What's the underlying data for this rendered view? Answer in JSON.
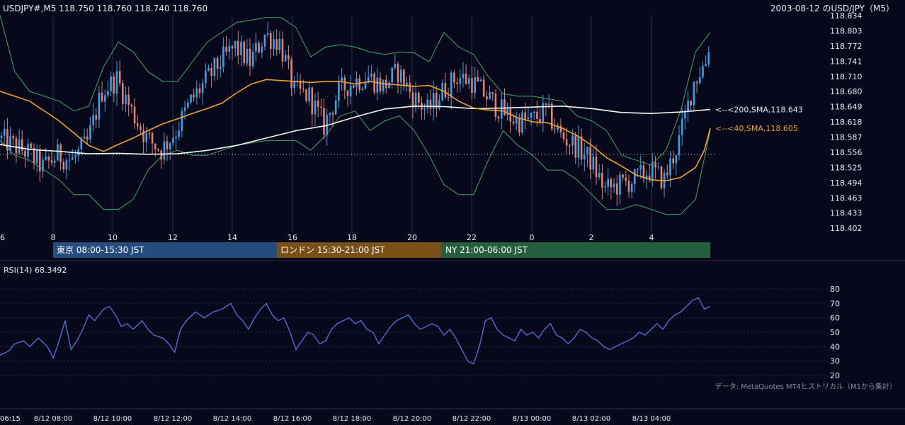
{
  "header": {
    "symbol_line": "USDJPY#,M5 118.750 118.760 118.740 118.760",
    "title": "2003-08-12 のUSD/JPY（M5）"
  },
  "colors": {
    "background": "#07091a",
    "grid": "#2a2d42",
    "bull": "#3aa0e8",
    "bear": "#e08070",
    "sma40": "#f0a030",
    "sma200": "#f4f4f4",
    "bollinger": "#3ea865",
    "rsi": "#5870e8",
    "tokyo": "#244c7c",
    "london": "#7a4f18",
    "ny": "#24603e"
  },
  "sessions": [
    {
      "label": "東京 08:00-15:30 JST"
    },
    {
      "label": "ロンドン 15:30-21:00 JST"
    },
    {
      "label": "NY 21:00-06:00 JST"
    }
  ],
  "footer_note": "データ: MetaQuotes MT4ヒストリカル（M1から集計）",
  "chart_data": [
    {
      "type": "candlestick",
      "title": "2003-08-12 のUSD/JPY（M5）",
      "symbol": "USDJPY#,M5",
      "last_ohlc": {
        "open": 118.75,
        "high": 118.76,
        "low": 118.74,
        "close": 118.76
      },
      "ylim": [
        118.402,
        118.834
      ],
      "y_ticks": [
        "118.834",
        "118.803",
        "118.772",
        "118.741",
        "118.710",
        "118.680",
        "118.649",
        "118.618",
        "118.587",
        "118.556",
        "118.525",
        "118.494",
        "118.463",
        "118.433",
        "118.402"
      ],
      "x_ticks": [
        "6",
        "8",
        "10",
        "12",
        "14",
        "16",
        "18",
        "20",
        "22",
        "0",
        "2",
        "4"
      ],
      "dotted_level": 118.552,
      "annotations": [
        {
          "label": "<--<200,SMA,118.643",
          "value": 118.643,
          "series": "sma200"
        },
        {
          "label": "<--<40,SMA,118.605",
          "value": 118.605,
          "series": "sma40"
        }
      ],
      "sma40_path": [
        [
          0,
          118.68
        ],
        [
          10,
          118.66
        ],
        [
          20,
          118.62
        ],
        [
          30,
          118.57
        ],
        [
          35,
          118.558
        ],
        [
          40,
          118.572
        ],
        [
          45,
          118.585
        ],
        [
          50,
          118.6
        ],
        [
          55,
          118.614
        ],
        [
          60,
          118.624
        ],
        [
          65,
          118.635
        ],
        [
          70,
          118.645
        ],
        [
          75,
          118.656
        ],
        [
          80,
          118.677
        ],
        [
          85,
          118.695
        ],
        [
          90,
          118.704
        ],
        [
          95,
          118.702
        ],
        [
          100,
          118.7
        ],
        [
          105,
          118.698
        ],
        [
          110,
          118.7
        ],
        [
          115,
          118.7
        ],
        [
          120,
          118.695
        ],
        [
          125,
          118.7
        ],
        [
          130,
          118.695
        ],
        [
          135,
          118.693
        ],
        [
          140,
          118.69
        ],
        [
          145,
          118.692
        ],
        [
          150,
          118.68
        ],
        [
          155,
          118.66
        ],
        [
          160,
          118.646
        ],
        [
          165,
          118.642
        ],
        [
          170,
          118.64
        ],
        [
          175,
          118.626
        ],
        [
          180,
          118.618
        ],
        [
          185,
          118.616
        ],
        [
          190,
          118.605
        ],
        [
          195,
          118.59
        ],
        [
          200,
          118.57
        ],
        [
          205,
          118.545
        ],
        [
          210,
          118.528
        ],
        [
          215,
          118.51
        ],
        [
          220,
          118.5
        ],
        [
          225,
          118.498
        ],
        [
          230,
          118.505
        ],
        [
          235,
          118.525
        ],
        [
          238,
          118.56
        ],
        [
          240,
          118.605
        ]
      ],
      "sma200_path": [
        [
          0,
          118.572
        ],
        [
          10,
          118.562
        ],
        [
          20,
          118.558
        ],
        [
          30,
          118.553
        ],
        [
          40,
          118.554
        ],
        [
          50,
          118.552
        ],
        [
          60,
          118.553
        ],
        [
          70,
          118.56
        ],
        [
          80,
          118.57
        ],
        [
          90,
          118.585
        ],
        [
          100,
          118.6
        ],
        [
          110,
          118.61
        ],
        [
          120,
          118.628
        ],
        [
          130,
          118.644
        ],
        [
          140,
          118.65
        ],
        [
          150,
          118.649
        ],
        [
          160,
          118.645
        ],
        [
          170,
          118.646
        ],
        [
          180,
          118.648
        ],
        [
          190,
          118.65
        ],
        [
          200,
          118.645
        ],
        [
          210,
          118.637
        ],
        [
          220,
          118.635
        ],
        [
          230,
          118.638
        ],
        [
          240,
          118.643
        ]
      ],
      "bb_upper_path": [
        [
          0,
          118.835
        ],
        [
          5,
          118.72
        ],
        [
          10,
          118.68
        ],
        [
          20,
          118.66
        ],
        [
          25,
          118.64
        ],
        [
          30,
          118.65
        ],
        [
          35,
          118.73
        ],
        [
          40,
          118.78
        ],
        [
          45,
          118.76
        ],
        [
          50,
          118.72
        ],
        [
          55,
          118.7
        ],
        [
          60,
          118.7
        ],
        [
          65,
          118.74
        ],
        [
          70,
          118.78
        ],
        [
          80,
          118.82
        ],
        [
          90,
          118.83
        ],
        [
          95,
          118.83
        ],
        [
          100,
          118.81
        ],
        [
          105,
          118.75
        ],
        [
          110,
          118.77
        ],
        [
          115,
          118.775
        ],
        [
          120,
          118.77
        ],
        [
          125,
          118.76
        ],
        [
          130,
          118.755
        ],
        [
          135,
          118.76
        ],
        [
          140,
          118.758
        ],
        [
          145,
          118.74
        ],
        [
          150,
          118.8
        ],
        [
          155,
          118.77
        ],
        [
          160,
          118.755
        ],
        [
          165,
          118.71
        ],
        [
          170,
          118.675
        ],
        [
          175,
          118.67
        ],
        [
          180,
          118.67
        ],
        [
          190,
          118.66
        ],
        [
          195,
          118.63
        ],
        [
          200,
          118.62
        ],
        [
          205,
          118.6
        ],
        [
          210,
          118.55
        ],
        [
          215,
          118.54
        ],
        [
          220,
          118.53
        ],
        [
          225,
          118.56
        ],
        [
          230,
          118.64
        ],
        [
          235,
          118.76
        ],
        [
          240,
          118.8
        ]
      ],
      "bb_lower_path": [
        [
          0,
          118.58
        ],
        [
          5,
          118.55
        ],
        [
          10,
          118.54
        ],
        [
          20,
          118.5
        ],
        [
          25,
          118.47
        ],
        [
          30,
          118.47
        ],
        [
          35,
          118.44
        ],
        [
          40,
          118.44
        ],
        [
          45,
          118.46
        ],
        [
          50,
          118.52
        ],
        [
          55,
          118.55
        ],
        [
          60,
          118.56
        ],
        [
          65,
          118.55
        ],
        [
          70,
          118.55
        ],
        [
          80,
          118.57
        ],
        [
          90,
          118.58
        ],
        [
          100,
          118.58
        ],
        [
          105,
          118.56
        ],
        [
          110,
          118.59
        ],
        [
          115,
          118.63
        ],
        [
          120,
          118.64
        ],
        [
          125,
          118.6
        ],
        [
          130,
          118.62
        ],
        [
          135,
          118.63
        ],
        [
          140,
          118.6
        ],
        [
          145,
          118.55
        ],
        [
          150,
          118.49
        ],
        [
          155,
          118.47
        ],
        [
          160,
          118.47
        ],
        [
          165,
          118.54
        ],
        [
          170,
          118.6
        ],
        [
          175,
          118.57
        ],
        [
          180,
          118.55
        ],
        [
          185,
          118.52
        ],
        [
          190,
          118.52
        ],
        [
          195,
          118.5
        ],
        [
          200,
          118.47
        ],
        [
          205,
          118.44
        ],
        [
          210,
          118.44
        ],
        [
          215,
          118.45
        ],
        [
          220,
          118.44
        ],
        [
          225,
          118.43
        ],
        [
          230,
          118.43
        ],
        [
          235,
          118.46
        ],
        [
          240,
          118.6
        ]
      ],
      "candle_trend": [
        [
          0,
          118.585
        ],
        [
          5,
          118.57
        ],
        [
          10,
          118.555
        ],
        [
          15,
          118.525
        ],
        [
          20,
          118.55
        ],
        [
          25,
          118.54
        ],
        [
          30,
          118.575
        ],
        [
          35,
          118.68
        ],
        [
          40,
          118.705
        ],
        [
          45,
          118.64
        ],
        [
          50,
          118.585
        ],
        [
          55,
          118.56
        ],
        [
          60,
          118.6
        ],
        [
          65,
          118.66
        ],
        [
          70,
          118.7
        ],
        [
          75,
          118.74
        ],
        [
          80,
          118.77
        ],
        [
          85,
          118.74
        ],
        [
          90,
          118.795
        ],
        [
          95,
          118.78
        ],
        [
          100,
          118.68
        ],
        [
          105,
          118.67
        ],
        [
          110,
          118.61
        ],
        [
          115,
          118.68
        ],
        [
          120,
          118.7
        ],
        [
          125,
          118.71
        ],
        [
          130,
          118.69
        ],
        [
          135,
          118.72
        ],
        [
          140,
          118.67
        ],
        [
          145,
          118.64
        ],
        [
          150,
          118.68
        ],
        [
          155,
          118.71
        ],
        [
          160,
          118.7
        ],
        [
          165,
          118.67
        ],
        [
          170,
          118.64
        ],
        [
          175,
          118.62
        ],
        [
          180,
          118.62
        ],
        [
          185,
          118.64
        ],
        [
          190,
          118.59
        ],
        [
          195,
          118.57
        ],
        [
          200,
          118.54
        ],
        [
          205,
          118.48
        ],
        [
          210,
          118.49
        ],
        [
          215,
          118.5
        ],
        [
          220,
          118.52
        ],
        [
          225,
          118.5
        ],
        [
          230,
          118.58
        ],
        [
          235,
          118.7
        ],
        [
          240,
          118.75
        ]
      ]
    },
    {
      "type": "line",
      "title": "RSI(14) 68.3492",
      "series": [
        {
          "name": "RSI(14)"
        }
      ],
      "current_value": 68.3492,
      "ylim": [
        20,
        80
      ],
      "y_ticks": [
        "80",
        "70",
        "60",
        "50",
        "40",
        "30",
        "20"
      ],
      "x_tick_labels": [
        "06:15",
        "8/12 08:00",
        "8/12 10:00",
        "8/12 12:00",
        "8/12 14:00",
        "8/12 16:00",
        "8/12 18:00",
        "8/12 20:00",
        "8/12 22:00",
        "8/13 00:00",
        "8/13 02:00",
        "8/13 04:00"
      ],
      "rsi_path": [
        [
          0,
          34
        ],
        [
          3,
          37
        ],
        [
          5,
          42
        ],
        [
          8,
          44
        ],
        [
          10,
          40
        ],
        [
          13,
          46
        ],
        [
          16,
          40
        ],
        [
          18,
          32
        ],
        [
          20,
          44
        ],
        [
          22,
          58
        ],
        [
          24,
          38
        ],
        [
          26,
          44
        ],
        [
          28,
          52
        ],
        [
          30,
          62
        ],
        [
          32,
          58
        ],
        [
          35,
          66
        ],
        [
          37,
          68
        ],
        [
          39,
          62
        ],
        [
          41,
          54
        ],
        [
          43,
          56
        ],
        [
          45,
          52
        ],
        [
          48,
          58
        ],
        [
          50,
          52
        ],
        [
          52,
          48
        ],
        [
          55,
          46
        ],
        [
          57,
          42
        ],
        [
          59,
          36
        ],
        [
          61,
          52
        ],
        [
          63,
          58
        ],
        [
          66,
          64
        ],
        [
          69,
          60
        ],
        [
          72,
          64
        ],
        [
          75,
          66
        ],
        [
          78,
          70
        ],
        [
          80,
          62
        ],
        [
          82,
          58
        ],
        [
          84,
          52
        ],
        [
          86,
          60
        ],
        [
          88,
          66
        ],
        [
          90,
          70
        ],
        [
          92,
          62
        ],
        [
          94,
          58
        ],
        [
          96,
          60
        ],
        [
          98,
          50
        ],
        [
          100,
          38
        ],
        [
          102,
          44
        ],
        [
          104,
          50
        ],
        [
          106,
          48
        ],
        [
          108,
          42
        ],
        [
          110,
          44
        ],
        [
          112,
          52
        ],
        [
          114,
          56
        ],
        [
          116,
          58
        ],
        [
          118,
          60
        ],
        [
          120,
          56
        ],
        [
          122,
          58
        ],
        [
          124,
          52
        ],
        [
          126,
          50
        ],
        [
          128,
          42
        ],
        [
          130,
          48
        ],
        [
          132,
          54
        ],
        [
          134,
          58
        ],
        [
          136,
          60
        ],
        [
          138,
          62
        ],
        [
          140,
          56
        ],
        [
          142,
          52
        ],
        [
          144,
          54
        ],
        [
          146,
          56
        ],
        [
          148,
          54
        ],
        [
          150,
          48
        ],
        [
          152,
          52
        ],
        [
          154,
          46
        ],
        [
          156,
          38
        ],
        [
          158,
          30
        ],
        [
          160,
          28
        ],
        [
          162,
          40
        ],
        [
          164,
          58
        ],
        [
          166,
          60
        ],
        [
          168,
          52
        ],
        [
          170,
          48
        ],
        [
          172,
          46
        ],
        [
          174,
          44
        ],
        [
          176,
          52
        ],
        [
          178,
          48
        ],
        [
          180,
          50
        ],
        [
          182,
          46
        ],
        [
          184,
          52
        ],
        [
          186,
          56
        ],
        [
          188,
          48
        ],
        [
          190,
          46
        ],
        [
          192,
          42
        ],
        [
          194,
          46
        ],
        [
          196,
          52
        ],
        [
          198,
          50
        ],
        [
          200,
          46
        ],
        [
          202,
          44
        ],
        [
          204,
          40
        ],
        [
          206,
          38
        ],
        [
          208,
          40
        ],
        [
          210,
          42
        ],
        [
          212,
          44
        ],
        [
          214,
          46
        ],
        [
          216,
          50
        ],
        [
          218,
          48
        ],
        [
          220,
          52
        ],
        [
          222,
          56
        ],
        [
          224,
          52
        ],
        [
          226,
          58
        ],
        [
          228,
          62
        ],
        [
          230,
          64
        ],
        [
          232,
          68
        ],
        [
          234,
          72
        ],
        [
          236,
          74
        ],
        [
          238,
          66
        ],
        [
          240,
          68
        ]
      ]
    }
  ]
}
